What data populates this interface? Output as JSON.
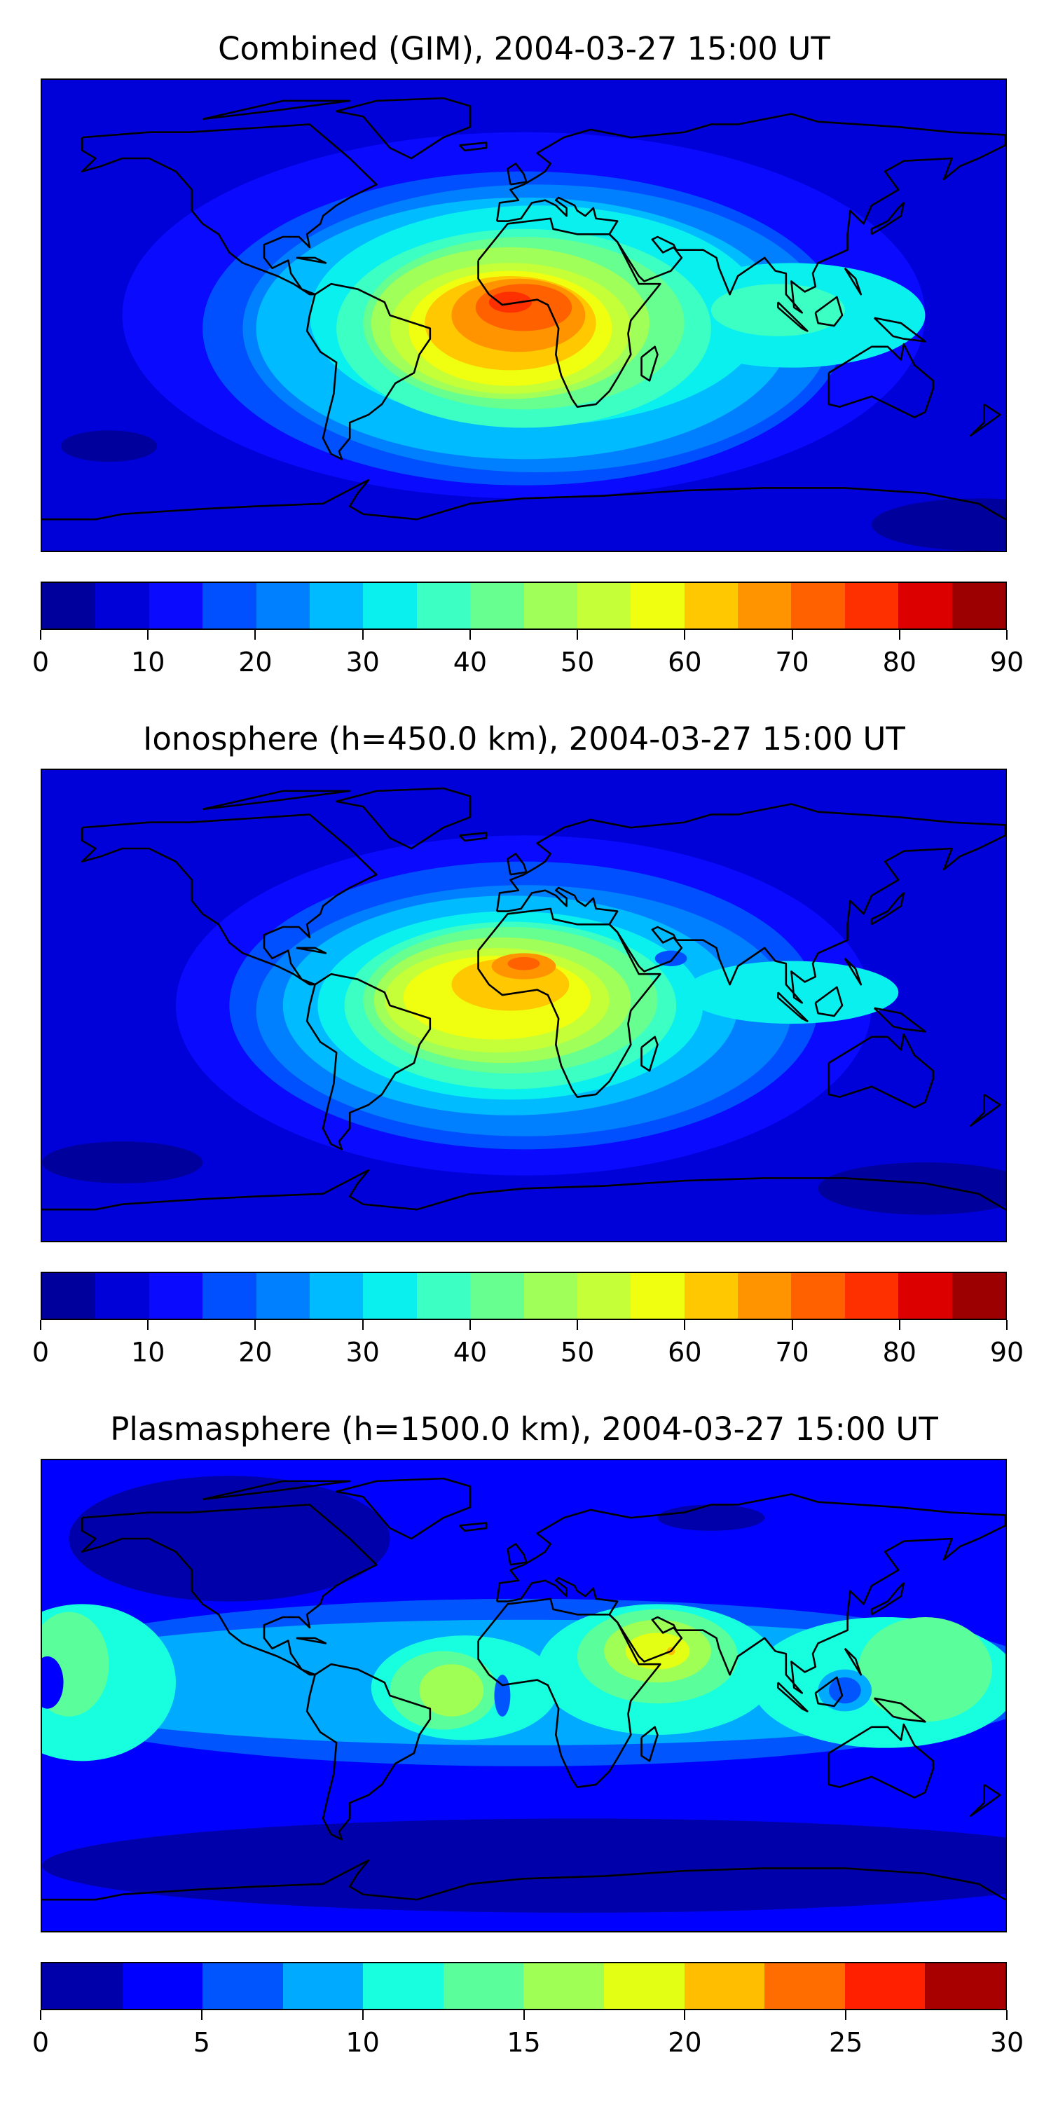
{
  "panels": [
    {
      "title": "Combined (GIM), 2004-03-27 15:00 UT"
    },
    {
      "title": "Ionosphere  (h=450.0 km), 2004-03-27 15:00 UT"
    },
    {
      "title": "Plasmasphere (h=1500.0 km), 2004-03-27 15:00 UT"
    }
  ],
  "chart_data": [
    {
      "type": "heatmap",
      "title": "Combined (GIM), 2004-03-27 15:00 UT",
      "projection": "equirectangular, global",
      "value_range": [
        0,
        90
      ],
      "levels": [
        0,
        5,
        10,
        15,
        20,
        25,
        30,
        35,
        40,
        45,
        50,
        55,
        60,
        65,
        70,
        75,
        80,
        85,
        90
      ],
      "colorbar_ticks": [
        "0",
        "10",
        "20",
        "30",
        "40",
        "50",
        "60",
        "70",
        "80",
        "90"
      ],
      "colors": [
        "#00009c",
        "#0000d8",
        "#0a0aff",
        "#0050ff",
        "#0080ff",
        "#00bbff",
        "#0af0ee",
        "#3cffc4",
        "#66ff90",
        "#a0ff58",
        "#c4ff38",
        "#f0ff10",
        "#ffc800",
        "#ff9400",
        "#ff6000",
        "#ff3000",
        "#dd0000",
        "#9c0000"
      ],
      "peak": {
        "lon": -5,
        "lat": 5,
        "value_band": [
          80,
          85
        ]
      }
    },
    {
      "type": "heatmap",
      "title": "Ionosphere  (h=450.0 km), 2004-03-27 15:00 UT",
      "projection": "equirectangular, global",
      "value_range": [
        0,
        90
      ],
      "levels": [
        0,
        5,
        10,
        15,
        20,
        25,
        30,
        35,
        40,
        45,
        50,
        55,
        60,
        65,
        70,
        75,
        80,
        85,
        90
      ],
      "colorbar_ticks": [
        "0",
        "10",
        "20",
        "30",
        "40",
        "50",
        "60",
        "70",
        "80",
        "90"
      ],
      "colors": [
        "#00009c",
        "#0000d8",
        "#0a0aff",
        "#0050ff",
        "#0080ff",
        "#00bbff",
        "#0af0ee",
        "#3cffc4",
        "#66ff90",
        "#a0ff58",
        "#c4ff38",
        "#f0ff10",
        "#ffc800",
        "#ff9400",
        "#ff6000",
        "#ff3000",
        "#dd0000",
        "#9c0000"
      ],
      "peak": {
        "lon": 0,
        "lat": 16,
        "value_band": [
          70,
          75
        ]
      }
    },
    {
      "type": "heatmap",
      "title": "Plasmasphere (h=1500.0 km), 2004-03-27 15:00 UT",
      "projection": "equirectangular, global",
      "value_range": [
        0,
        30
      ],
      "levels": [
        0,
        2.5,
        5,
        7.5,
        10,
        12.5,
        15,
        17.5,
        20,
        22.5,
        25,
        27.5,
        30
      ],
      "colorbar_ticks": [
        "0",
        "5",
        "10",
        "15",
        "20",
        "25",
        "30"
      ],
      "colors": [
        "#0000aa",
        "#0000ff",
        "#0055ff",
        "#00aaff",
        "#17ffdf",
        "#5aff9b",
        "#a0ff55",
        "#e3ff14",
        "#ffbf00",
        "#ff6d00",
        "#ff2000",
        "#a80000"
      ],
      "peak": {
        "lon": 50,
        "lat": 17,
        "value_band": [
          20,
          22.5
        ]
      }
    }
  ]
}
